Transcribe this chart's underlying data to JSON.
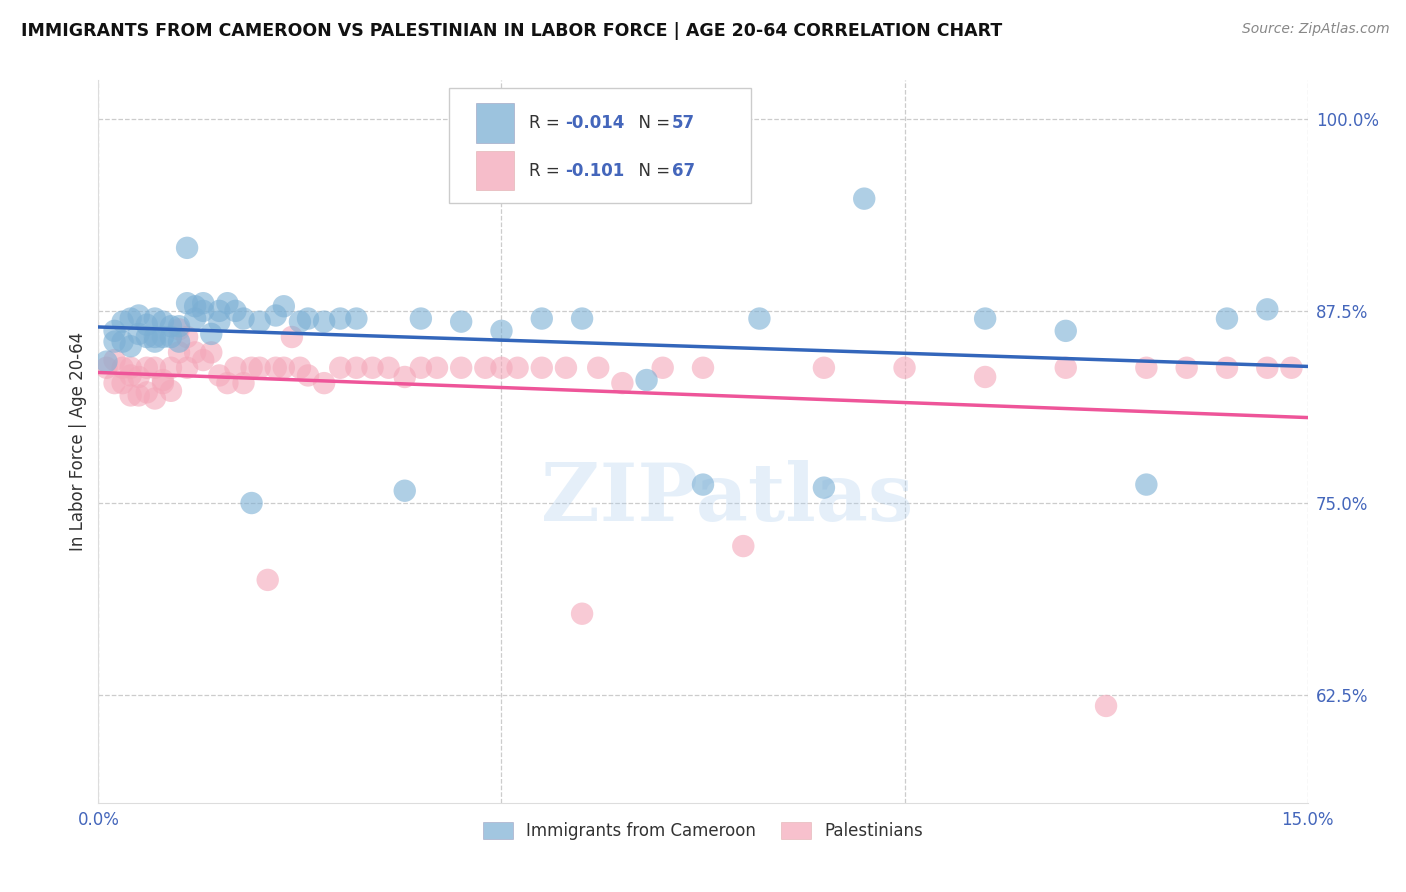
{
  "title": "IMMIGRANTS FROM CAMEROON VS PALESTINIAN IN LABOR FORCE | AGE 20-64 CORRELATION CHART",
  "source": "Source: ZipAtlas.com",
  "ylabel": "In Labor Force | Age 20-64",
  "xlim": [
    0.0,
    0.15
  ],
  "ylim": [
    0.555,
    1.025
  ],
  "xticks": [
    0.0,
    0.05,
    0.1,
    0.15
  ],
  "xticklabels": [
    "0.0%",
    "",
    "",
    "15.0%"
  ],
  "yticks": [
    0.625,
    0.75,
    0.875,
    1.0
  ],
  "yticklabels": [
    "62.5%",
    "75.0%",
    "87.5%",
    "100.0%"
  ],
  "blue_color": "#7BAFD4",
  "pink_color": "#F4A7B9",
  "blue_line_color": "#3366BB",
  "pink_line_color": "#EE5599",
  "legend_r1": "-0.014",
  "legend_n1": "57",
  "legend_r2": "-0.101",
  "legend_n2": "67",
  "watermark": "ZIPatlas",
  "tick_color": "#4466BB",
  "label_color": "#333333",
  "blue_x": [
    0.001,
    0.002,
    0.002,
    0.003,
    0.003,
    0.004,
    0.004,
    0.005,
    0.005,
    0.006,
    0.006,
    0.007,
    0.007,
    0.007,
    0.008,
    0.008,
    0.009,
    0.009,
    0.01,
    0.01,
    0.011,
    0.011,
    0.012,
    0.012,
    0.013,
    0.013,
    0.014,
    0.015,
    0.015,
    0.016,
    0.017,
    0.018,
    0.019,
    0.02,
    0.022,
    0.023,
    0.025,
    0.026,
    0.028,
    0.03,
    0.032,
    0.038,
    0.04,
    0.045,
    0.05,
    0.055,
    0.06,
    0.068,
    0.075,
    0.082,
    0.09,
    0.095,
    0.11,
    0.12,
    0.13,
    0.14,
    0.145
  ],
  "blue_y": [
    0.842,
    0.855,
    0.862,
    0.855,
    0.868,
    0.852,
    0.87,
    0.86,
    0.872,
    0.858,
    0.866,
    0.855,
    0.87,
    0.858,
    0.868,
    0.858,
    0.858,
    0.865,
    0.865,
    0.855,
    0.88,
    0.916,
    0.878,
    0.87,
    0.875,
    0.88,
    0.86,
    0.875,
    0.868,
    0.88,
    0.875,
    0.87,
    0.75,
    0.868,
    0.872,
    0.878,
    0.868,
    0.87,
    0.868,
    0.87,
    0.87,
    0.758,
    0.87,
    0.868,
    0.862,
    0.87,
    0.87,
    0.83,
    0.762,
    0.87,
    0.76,
    0.948,
    0.87,
    0.862,
    0.762,
    0.87,
    0.876
  ],
  "pink_x": [
    0.001,
    0.002,
    0.002,
    0.003,
    0.003,
    0.004,
    0.004,
    0.004,
    0.005,
    0.005,
    0.006,
    0.006,
    0.007,
    0.007,
    0.008,
    0.008,
    0.009,
    0.009,
    0.01,
    0.01,
    0.011,
    0.011,
    0.012,
    0.013,
    0.014,
    0.015,
    0.016,
    0.017,
    0.018,
    0.019,
    0.02,
    0.021,
    0.022,
    0.023,
    0.024,
    0.025,
    0.026,
    0.028,
    0.03,
    0.032,
    0.034,
    0.036,
    0.038,
    0.04,
    0.042,
    0.045,
    0.048,
    0.05,
    0.052,
    0.055,
    0.058,
    0.06,
    0.062,
    0.065,
    0.07,
    0.075,
    0.08,
    0.09,
    0.1,
    0.11,
    0.12,
    0.125,
    0.13,
    0.135,
    0.14,
    0.145,
    0.148
  ],
  "pink_y": [
    0.838,
    0.843,
    0.828,
    0.838,
    0.828,
    0.833,
    0.82,
    0.838,
    0.832,
    0.82,
    0.838,
    0.822,
    0.838,
    0.818,
    0.83,
    0.828,
    0.838,
    0.823,
    0.863,
    0.848,
    0.858,
    0.838,
    0.848,
    0.843,
    0.848,
    0.833,
    0.828,
    0.838,
    0.828,
    0.838,
    0.838,
    0.7,
    0.838,
    0.838,
    0.858,
    0.838,
    0.833,
    0.828,
    0.838,
    0.838,
    0.838,
    0.838,
    0.832,
    0.838,
    0.838,
    0.838,
    0.838,
    0.838,
    0.838,
    0.838,
    0.838,
    0.678,
    0.838,
    0.828,
    0.838,
    0.838,
    0.722,
    0.838,
    0.838,
    0.832,
    0.838,
    0.618,
    0.838,
    0.838,
    0.838,
    0.838,
    0.838
  ]
}
